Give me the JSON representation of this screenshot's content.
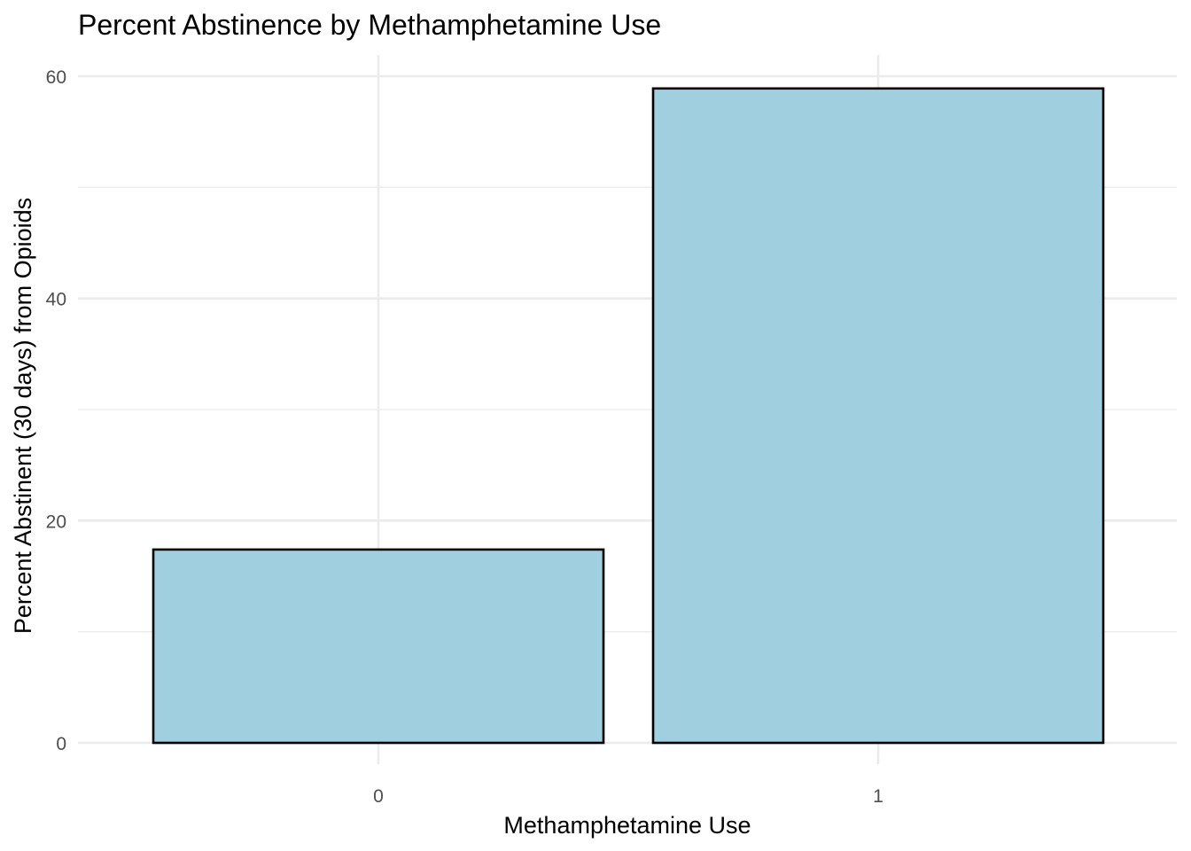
{
  "chart_data": {
    "type": "bar",
    "title": "Percent Abstinence by Methamphetamine Use",
    "xlabel": "Methamphetamine Use",
    "ylabel": "Percent Abstinent (30 days) from Opioids",
    "categories": [
      "0",
      "1"
    ],
    "values": [
      17.4,
      58.9
    ],
    "ylim": [
      0,
      61
    ],
    "yticks": [
      "0",
      "20",
      "40",
      "60"
    ],
    "grid": true,
    "bar_color": "#a0cfdf",
    "bar_outline_color": "#000000"
  }
}
